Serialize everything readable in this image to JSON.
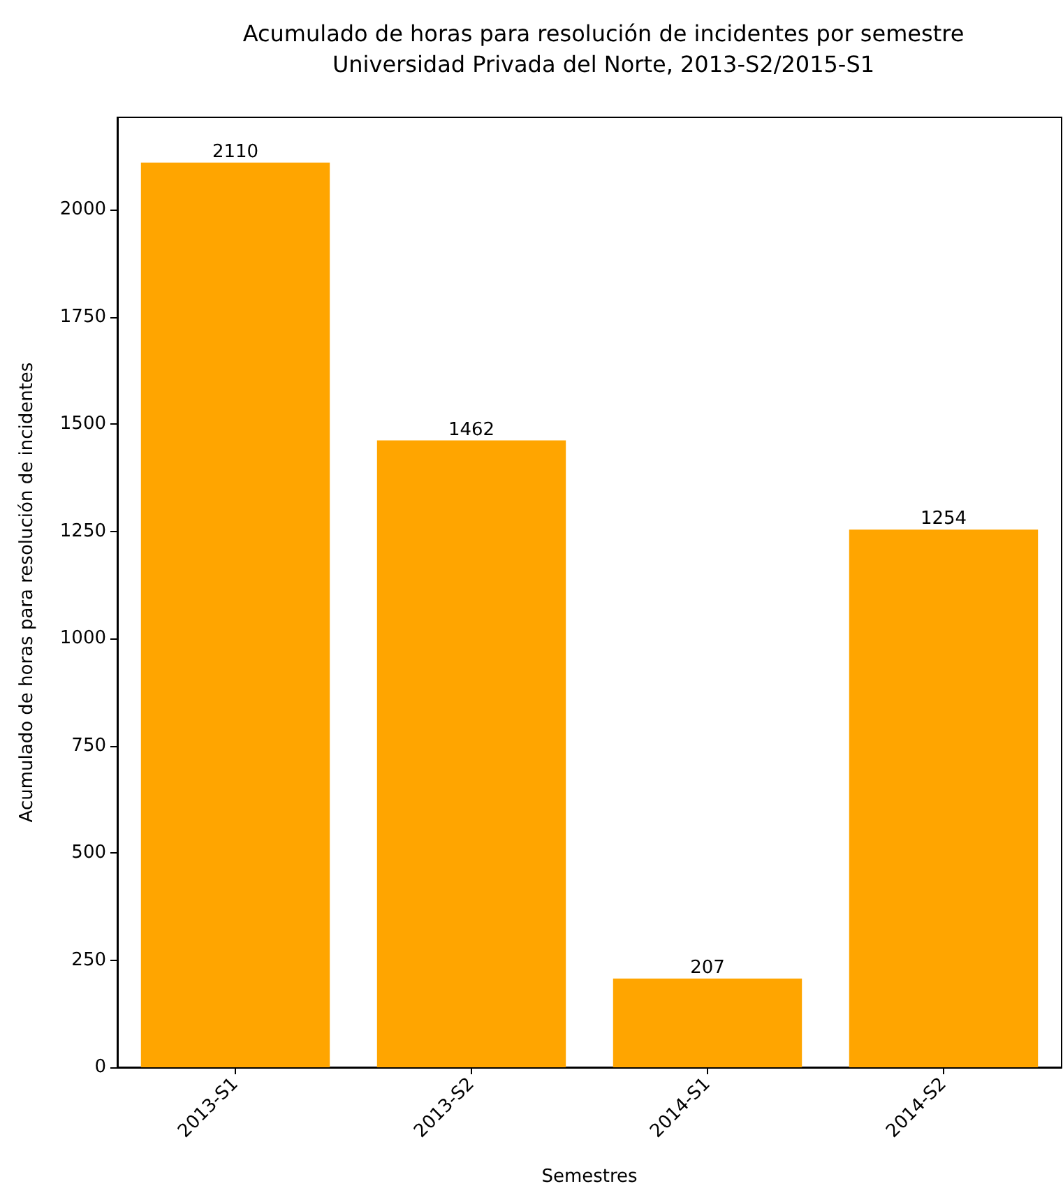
{
  "chart_data": {
    "type": "bar",
    "title": "Acumulado de horas para resolución de incidentes por semestre\nUniversidad Privada del Norte, 2013-S2/2015-S1",
    "xlabel": "Semestres",
    "ylabel": "Acumulado de horas para resolución de incidentes",
    "categories": [
      "2013-S1",
      "2013-S2",
      "2014-S1",
      "2014-S2"
    ],
    "values": [
      2110,
      1462,
      207,
      1254
    ],
    "color": "#ffa500",
    "data_labels": true,
    "ylim": [
      0,
      2215.5
    ],
    "yticks": [
      0,
      250,
      500,
      750,
      1000,
      1250,
      1500,
      1750,
      2000
    ],
    "grid": false
  }
}
